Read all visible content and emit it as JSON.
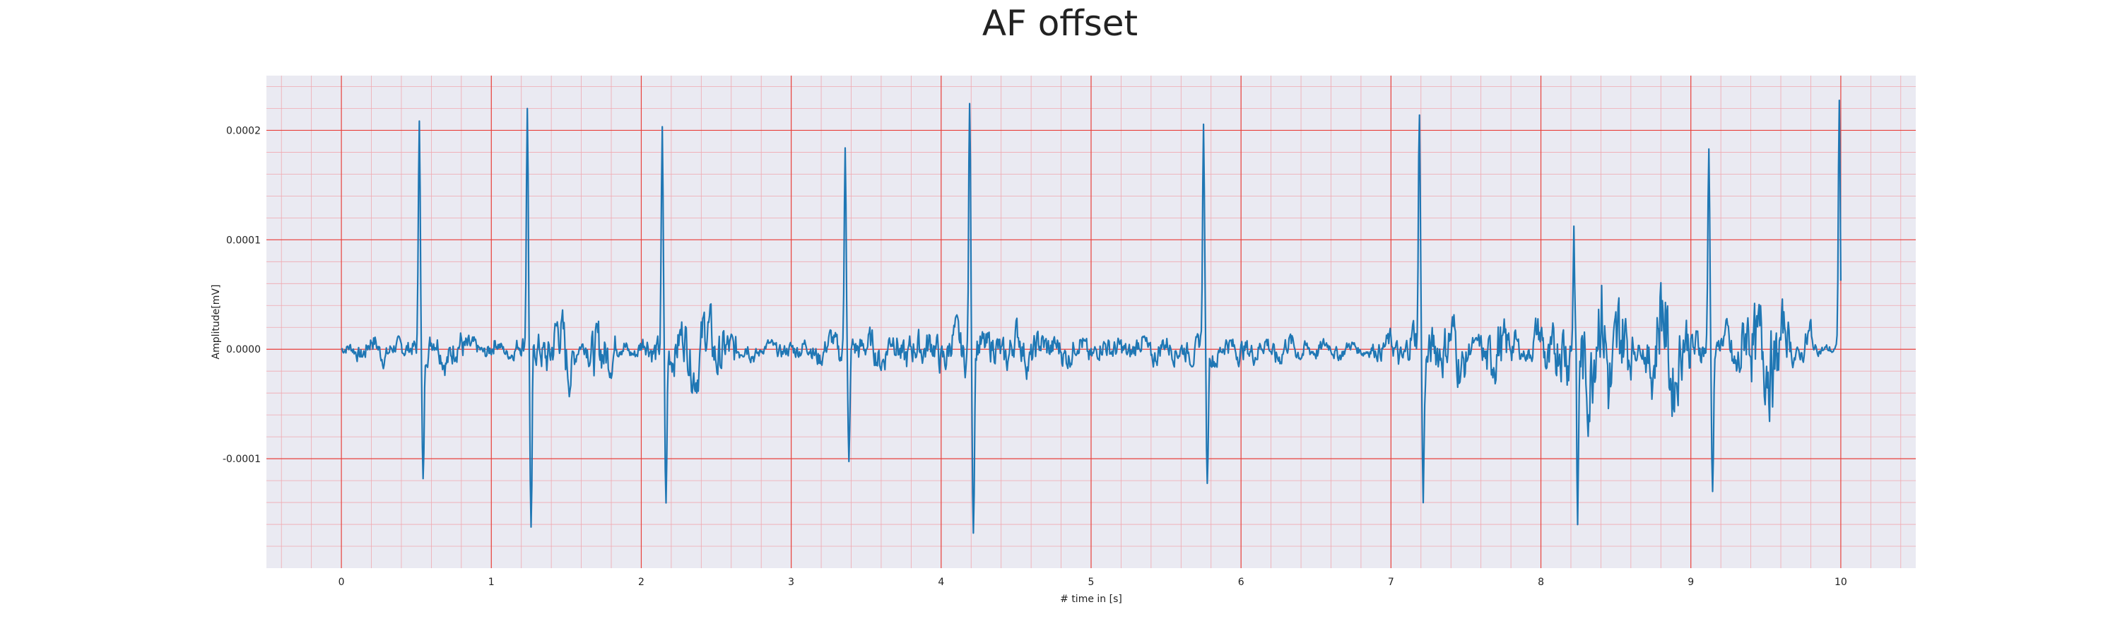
{
  "chart_data": {
    "type": "line",
    "title": "AF offset",
    "xlabel": "# time in [s]",
    "ylabel": "Amplitude[mV]",
    "xlim": [
      -0.5,
      10.5
    ],
    "ylim": [
      -0.0002,
      0.00025
    ],
    "x_ticks": [
      0,
      1,
      2,
      3,
      4,
      5,
      6,
      7,
      8,
      9,
      10
    ],
    "x_tick_labels": [
      "0",
      "1",
      "2",
      "3",
      "4",
      "5",
      "6",
      "7",
      "8",
      "9",
      "10"
    ],
    "y_ticks": [
      -0.0001,
      0.0,
      0.0001,
      0.0002
    ],
    "y_tick_labels": [
      "-0.0001",
      "0.0000",
      "0.0001",
      "0.0002"
    ],
    "grid": true,
    "minor_grid": true,
    "colors": {
      "line": "#1f77b4",
      "major_grid": "#e8413c",
      "minor_grid": "#f0a8b0",
      "background": "#eaeaf2"
    },
    "series": [
      {
        "beats": [
          {
            "t": 0.52,
            "peak": 0.00022,
            "trough": -0.00012
          },
          {
            "t": 1.24,
            "peak": 0.00022,
            "trough": -0.000175
          },
          {
            "t": 2.14,
            "peak": 0.00019,
            "trough": -0.000145
          },
          {
            "t": 3.36,
            "peak": 0.0002,
            "trough": -0.00011
          },
          {
            "t": 4.19,
            "peak": 0.000235,
            "trough": -0.00016
          },
          {
            "t": 5.75,
            "peak": 0.000195,
            "trough": -0.00013
          },
          {
            "t": 7.19,
            "peak": 0.00022,
            "trough": -0.00013
          },
          {
            "t": 8.22,
            "peak": 0.0001,
            "trough": -0.000175
          },
          {
            "t": 9.12,
            "peak": 0.000185,
            "trough": -0.000125
          },
          {
            "t": 9.99,
            "peak": 0.000228,
            "trough": -2e-05
          }
        ],
        "baseline_oscillation": [
          {
            "x": 0.0,
            "y": 0.0
          },
          {
            "x": 0.2,
            "y": 1e-05
          },
          {
            "x": 0.4,
            "y": 5e-06
          },
          {
            "x": 0.8,
            "y": 2e-05
          },
          {
            "x": 1.0,
            "y": -1e-05
          },
          {
            "x": 1.5,
            "y": 4e-05
          },
          {
            "x": 1.7,
            "y": -4e-05
          },
          {
            "x": 2.0,
            "y": 1e-05
          },
          {
            "x": 2.45,
            "y": 4e-05
          },
          {
            "x": 2.8,
            "y": 0.0
          },
          {
            "x": 3.2,
            "y": 1e-05
          },
          {
            "x": 3.8,
            "y": 2e-05
          },
          {
            "x": 4.5,
            "y": 2e-05
          },
          {
            "x": 5.0,
            "y": 1e-05
          },
          {
            "x": 5.5,
            "y": 1e-05
          },
          {
            "x": 6.3,
            "y": 1e-05
          },
          {
            "x": 6.8,
            "y": 0.0
          },
          {
            "x": 7.45,
            "y": 4e-05
          },
          {
            "x": 7.7,
            "y": -5e-05
          },
          {
            "x": 8.0,
            "y": 3e-05
          },
          {
            "x": 8.5,
            "y": 9e-05
          },
          {
            "x": 8.8,
            "y": -8e-05
          },
          {
            "x": 9.5,
            "y": 8e-05
          },
          {
            "x": 9.8,
            "y": -3e-05
          }
        ]
      }
    ]
  }
}
